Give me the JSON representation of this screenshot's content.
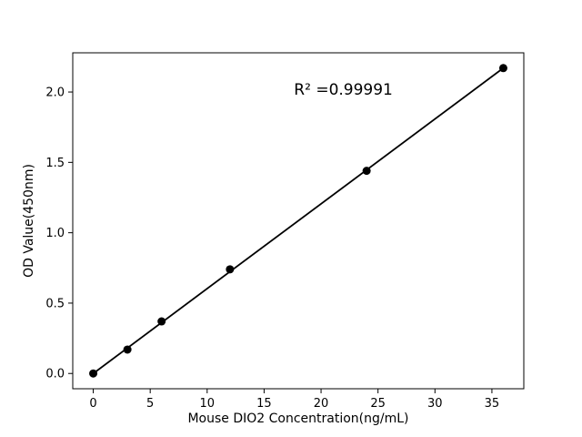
{
  "page": {
    "background": "#ffffff"
  },
  "chart_data": {
    "type": "scatter",
    "title": "",
    "annotation": "R² =0.99991",
    "xlabel": "Mouse DIO2 Concentration(ng/mL)",
    "ylabel": "OD Value(450nm)",
    "x": [
      0,
      3,
      6,
      12,
      24,
      36
    ],
    "y": [
      0.0,
      0.17,
      0.37,
      0.74,
      1.44,
      2.17
    ],
    "fit_line": {
      "x1": 0,
      "y1": 0.0,
      "x2": 36,
      "y2": 2.17
    },
    "xticks": [
      0,
      5,
      10,
      15,
      20,
      25,
      30,
      35
    ],
    "xticklabels": [
      "0",
      "5",
      "10",
      "15",
      "20",
      "25",
      "30",
      "35"
    ],
    "yticks": [
      0.0,
      0.5,
      1.0,
      1.5,
      2.0
    ],
    "yticklabels": [
      "0.0",
      "0.5",
      "1.0",
      "1.5",
      "2.0"
    ],
    "xlim": [
      -1.8,
      37.8
    ],
    "ylim": [
      -0.1085,
      2.2785
    ],
    "marker_color": "#000000",
    "line_color": "#000000",
    "grid": false,
    "legend": null
  }
}
